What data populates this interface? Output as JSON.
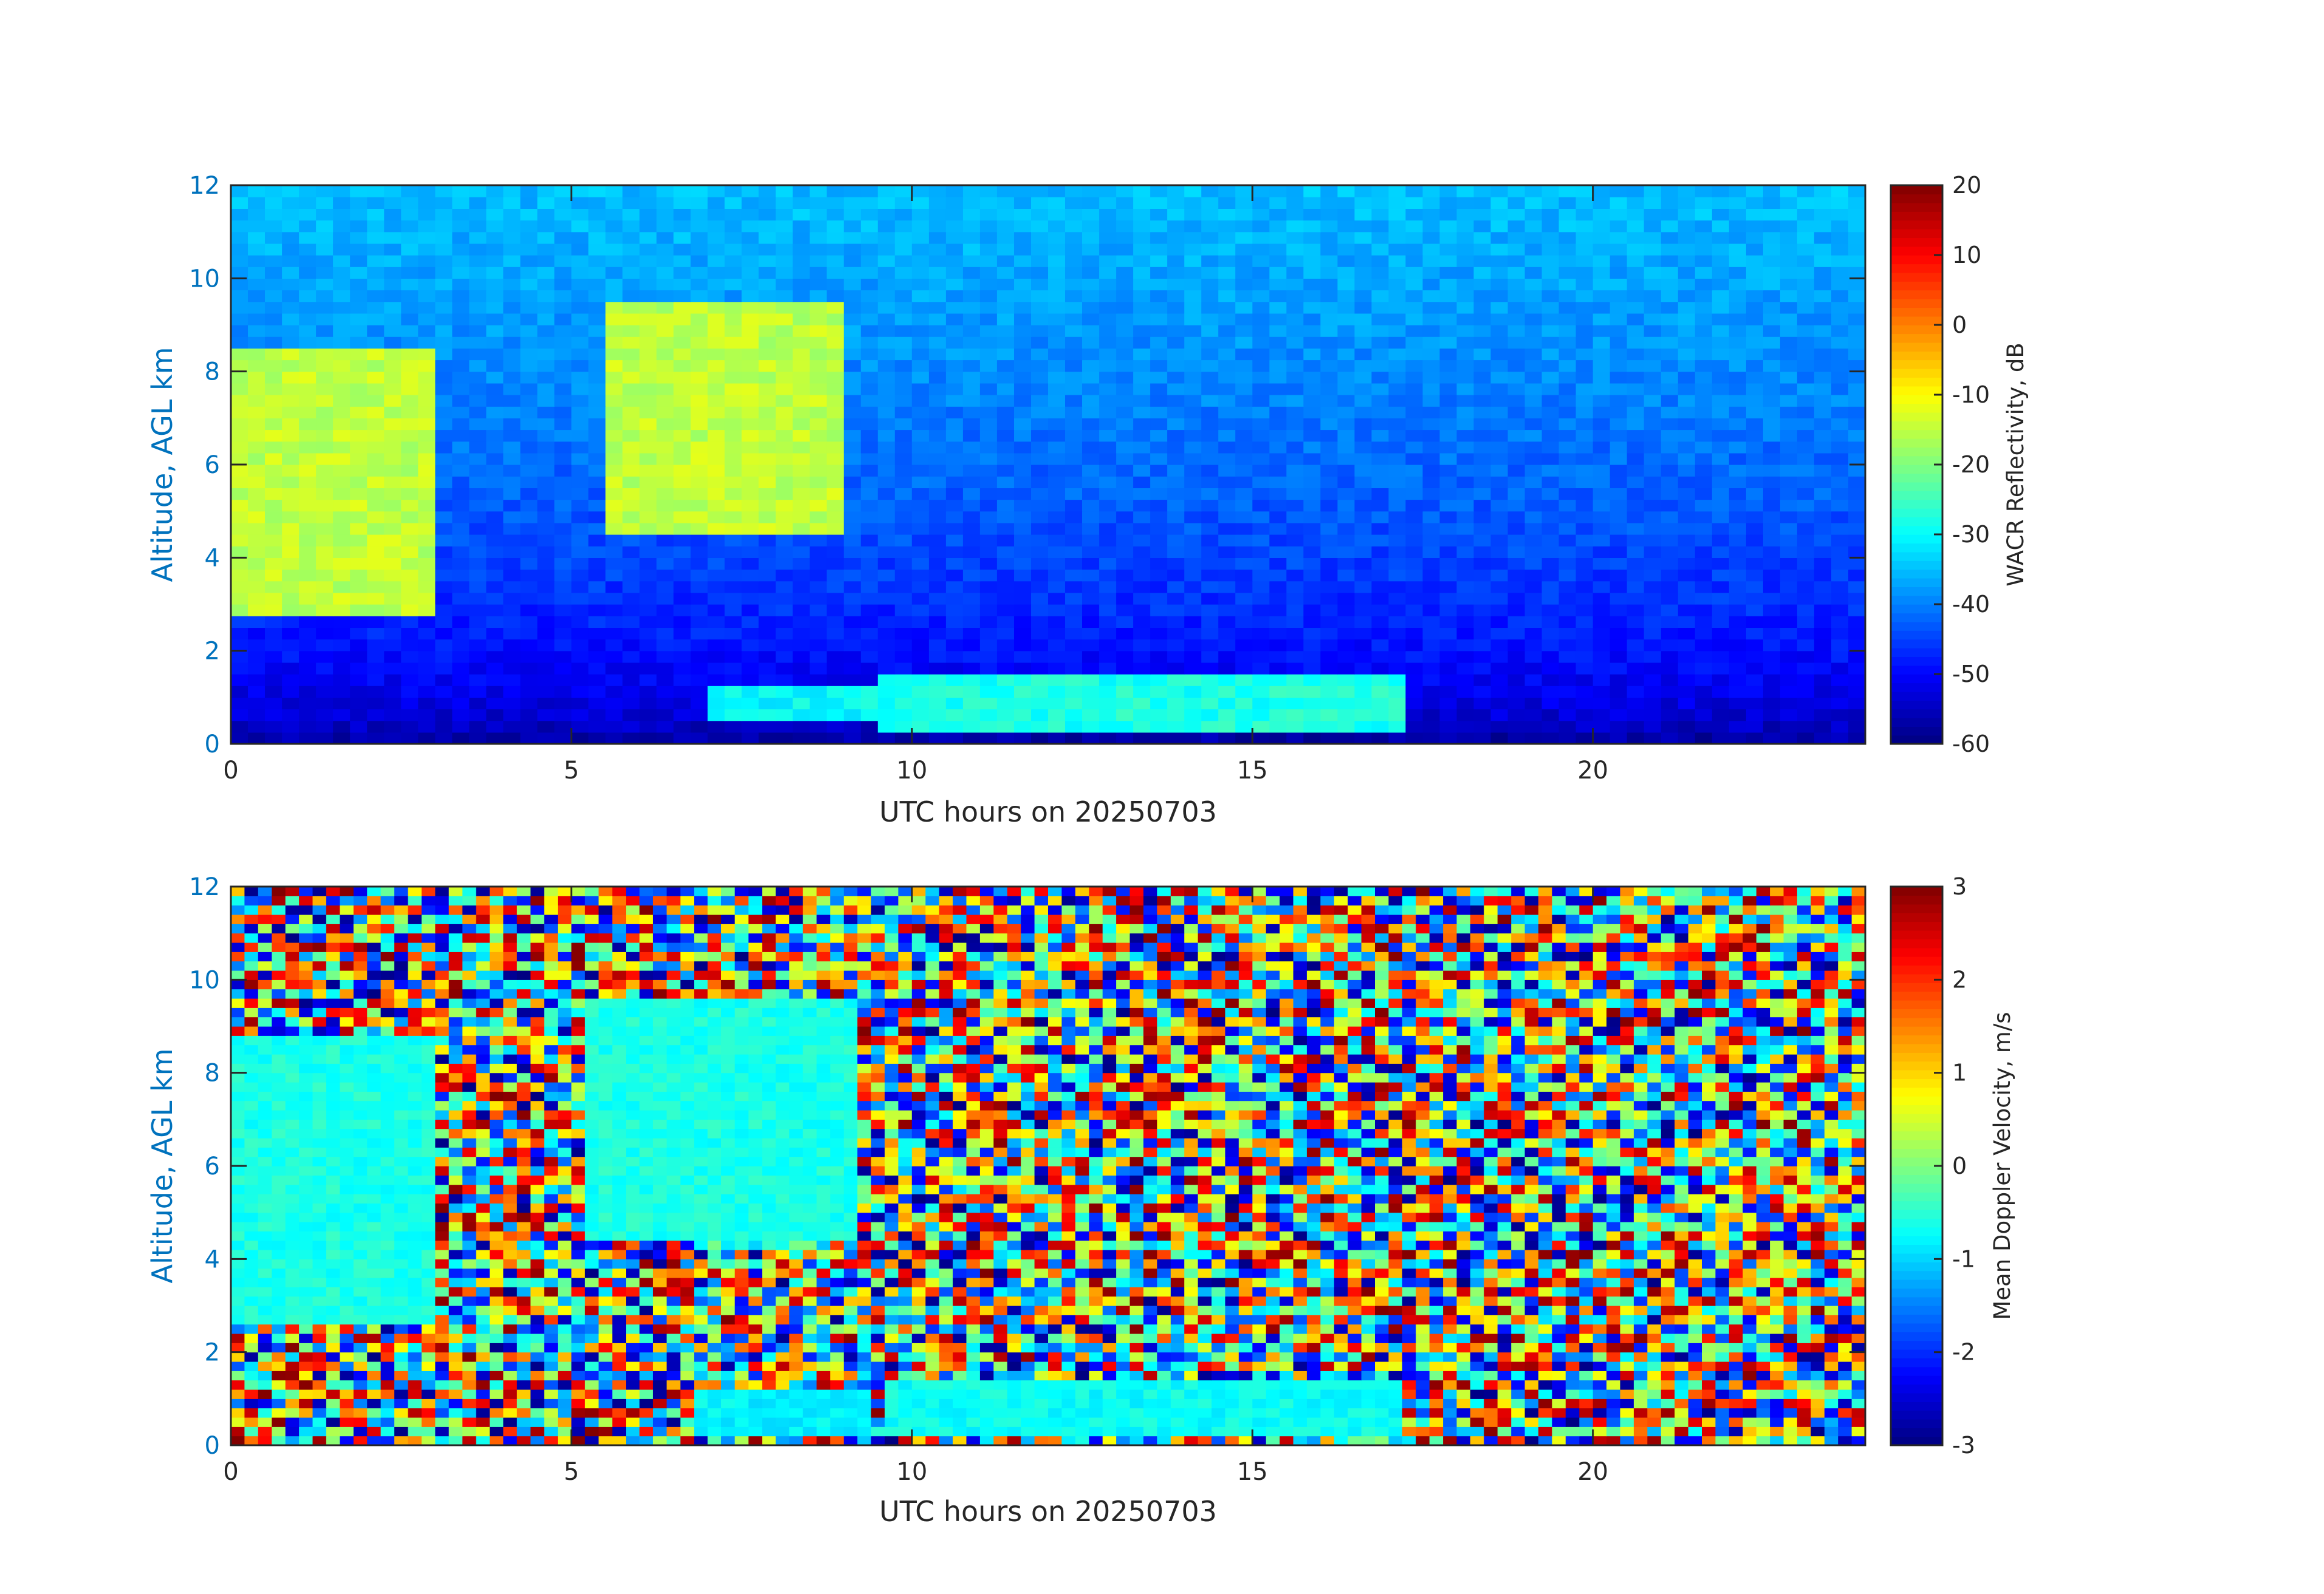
{
  "chart_data": [
    {
      "type": "heatmap",
      "title": "",
      "xlabel": "UTC hours on 20250703",
      "ylabel": "Altitude, AGL km",
      "xlim": [
        0,
        24
      ],
      "ylim": [
        0,
        12
      ],
      "x_ticks": [
        0,
        5,
        10,
        15,
        20
      ],
      "y_ticks": [
        0,
        2,
        4,
        6,
        8,
        10,
        12
      ],
      "colorbar": {
        "label": "WACR Reflectivity, dB",
        "colormap": "jet",
        "range": [
          -60,
          20
        ],
        "ticks": [
          20,
          10,
          0,
          -10,
          -20,
          -30,
          -40,
          -50,
          -60
        ]
      },
      "background": "noise floor increasing with altitude: about -60 dB near the surface to about -35 dB at 12 km",
      "features": [
        {
          "name": "cirrus",
          "x_range": [
            0,
            3
          ],
          "y_range": [
            2.8,
            8.6
          ],
          "value_db": -15
        },
        {
          "name": "cirrus",
          "x_range": [
            5.4,
            9.1
          ],
          "y_range": [
            4.5,
            9.4
          ],
          "value_db": -15
        },
        {
          "name": "low cloud",
          "x_range": [
            6.9,
            9.4
          ],
          "y_range": [
            0.6,
            1.2
          ],
          "value_db": -30
        },
        {
          "name": "low cloud",
          "x_range": [
            9.6,
            17.2
          ],
          "y_range": [
            0.3,
            1.4
          ],
          "value_db": -28
        }
      ]
    },
    {
      "type": "heatmap",
      "title": "",
      "xlabel": "UTC hours on 20250703",
      "ylabel": "Altitude, AGL km",
      "xlim": [
        0,
        24
      ],
      "ylim": [
        0,
        12
      ],
      "x_ticks": [
        0,
        5,
        10,
        15,
        20
      ],
      "y_ticks": [
        0,
        2,
        4,
        6,
        8,
        10,
        12
      ],
      "colorbar": {
        "label": "Mean Doppler Velocity, m/s",
        "colormap": "jet",
        "range": [
          -3,
          3
        ],
        "ticks": [
          3,
          2,
          1,
          0,
          -1,
          -2,
          -3
        ]
      },
      "background": "random noise spanning -3 to 3 m/s",
      "features": [
        {
          "name": "cirrus",
          "x_range": [
            0,
            3
          ],
          "y_range": [
            2.6,
            8.8
          ],
          "value_ms": -0.6
        },
        {
          "name": "cirrus",
          "x_range": [
            5.3,
            9.1
          ],
          "y_range": [
            4.4,
            9.6
          ],
          "value_ms": -0.6
        },
        {
          "name": "low cloud",
          "x_range": [
            6.9,
            9.3
          ],
          "y_range": [
            0.2,
            1.2
          ],
          "value_ms": -0.8
        },
        {
          "name": "low cloud",
          "x_range": [
            9.6,
            17.1
          ],
          "y_range": [
            0.2,
            1.4
          ],
          "value_ms": -0.7
        }
      ]
    }
  ]
}
